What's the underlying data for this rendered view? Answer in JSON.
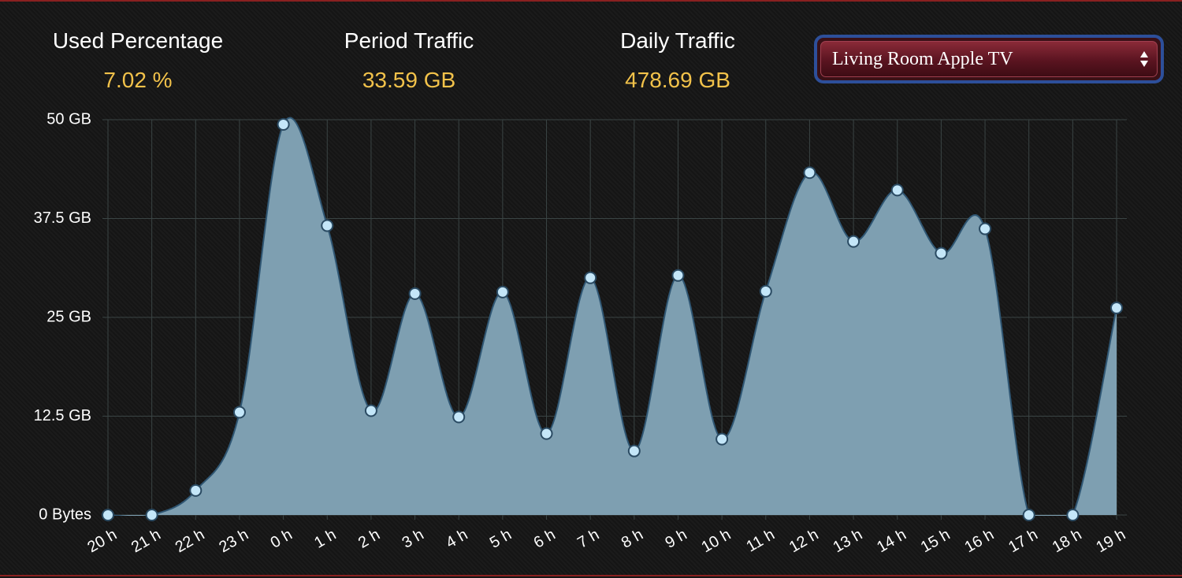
{
  "stats": [
    {
      "label": "Used Percentage",
      "value": "7.02 %"
    },
    {
      "label": "Period Traffic",
      "value": "33.59 GB"
    },
    {
      "label": "Daily Traffic",
      "value": "478.69 GB"
    }
  ],
  "device_select": "Living Room Apple TV",
  "chart_data": {
    "type": "area",
    "categories": [
      "20 h",
      "21 h",
      "22 h",
      "23 h",
      "0 h",
      "1 h",
      "2 h",
      "3 h",
      "4 h",
      "5 h",
      "6 h",
      "7 h",
      "8 h",
      "9 h",
      "10 h",
      "11 h",
      "12 h",
      "13 h",
      "14 h",
      "15 h",
      "16 h",
      "17 h",
      "18 h",
      "19 h"
    ],
    "values": [
      0,
      0,
      3.1,
      13.0,
      49.4,
      36.6,
      13.2,
      28.0,
      12.4,
      28.2,
      10.3,
      30.0,
      8.1,
      30.3,
      9.6,
      28.3,
      43.3,
      34.6,
      41.1,
      33.1,
      36.2,
      0,
      0,
      26.2
    ],
    "color": "#7e9fb1",
    "ylim": [
      0,
      50
    ],
    "yticks": [
      {
        "value": 0,
        "label": "0 Bytes"
      },
      {
        "value": 12.5,
        "label": "12.5 GB"
      },
      {
        "value": 25,
        "label": "25 GB"
      },
      {
        "value": 37.5,
        "label": "37.5 GB"
      },
      {
        "value": 50,
        "label": "50 GB"
      }
    ],
    "grid": true
  }
}
